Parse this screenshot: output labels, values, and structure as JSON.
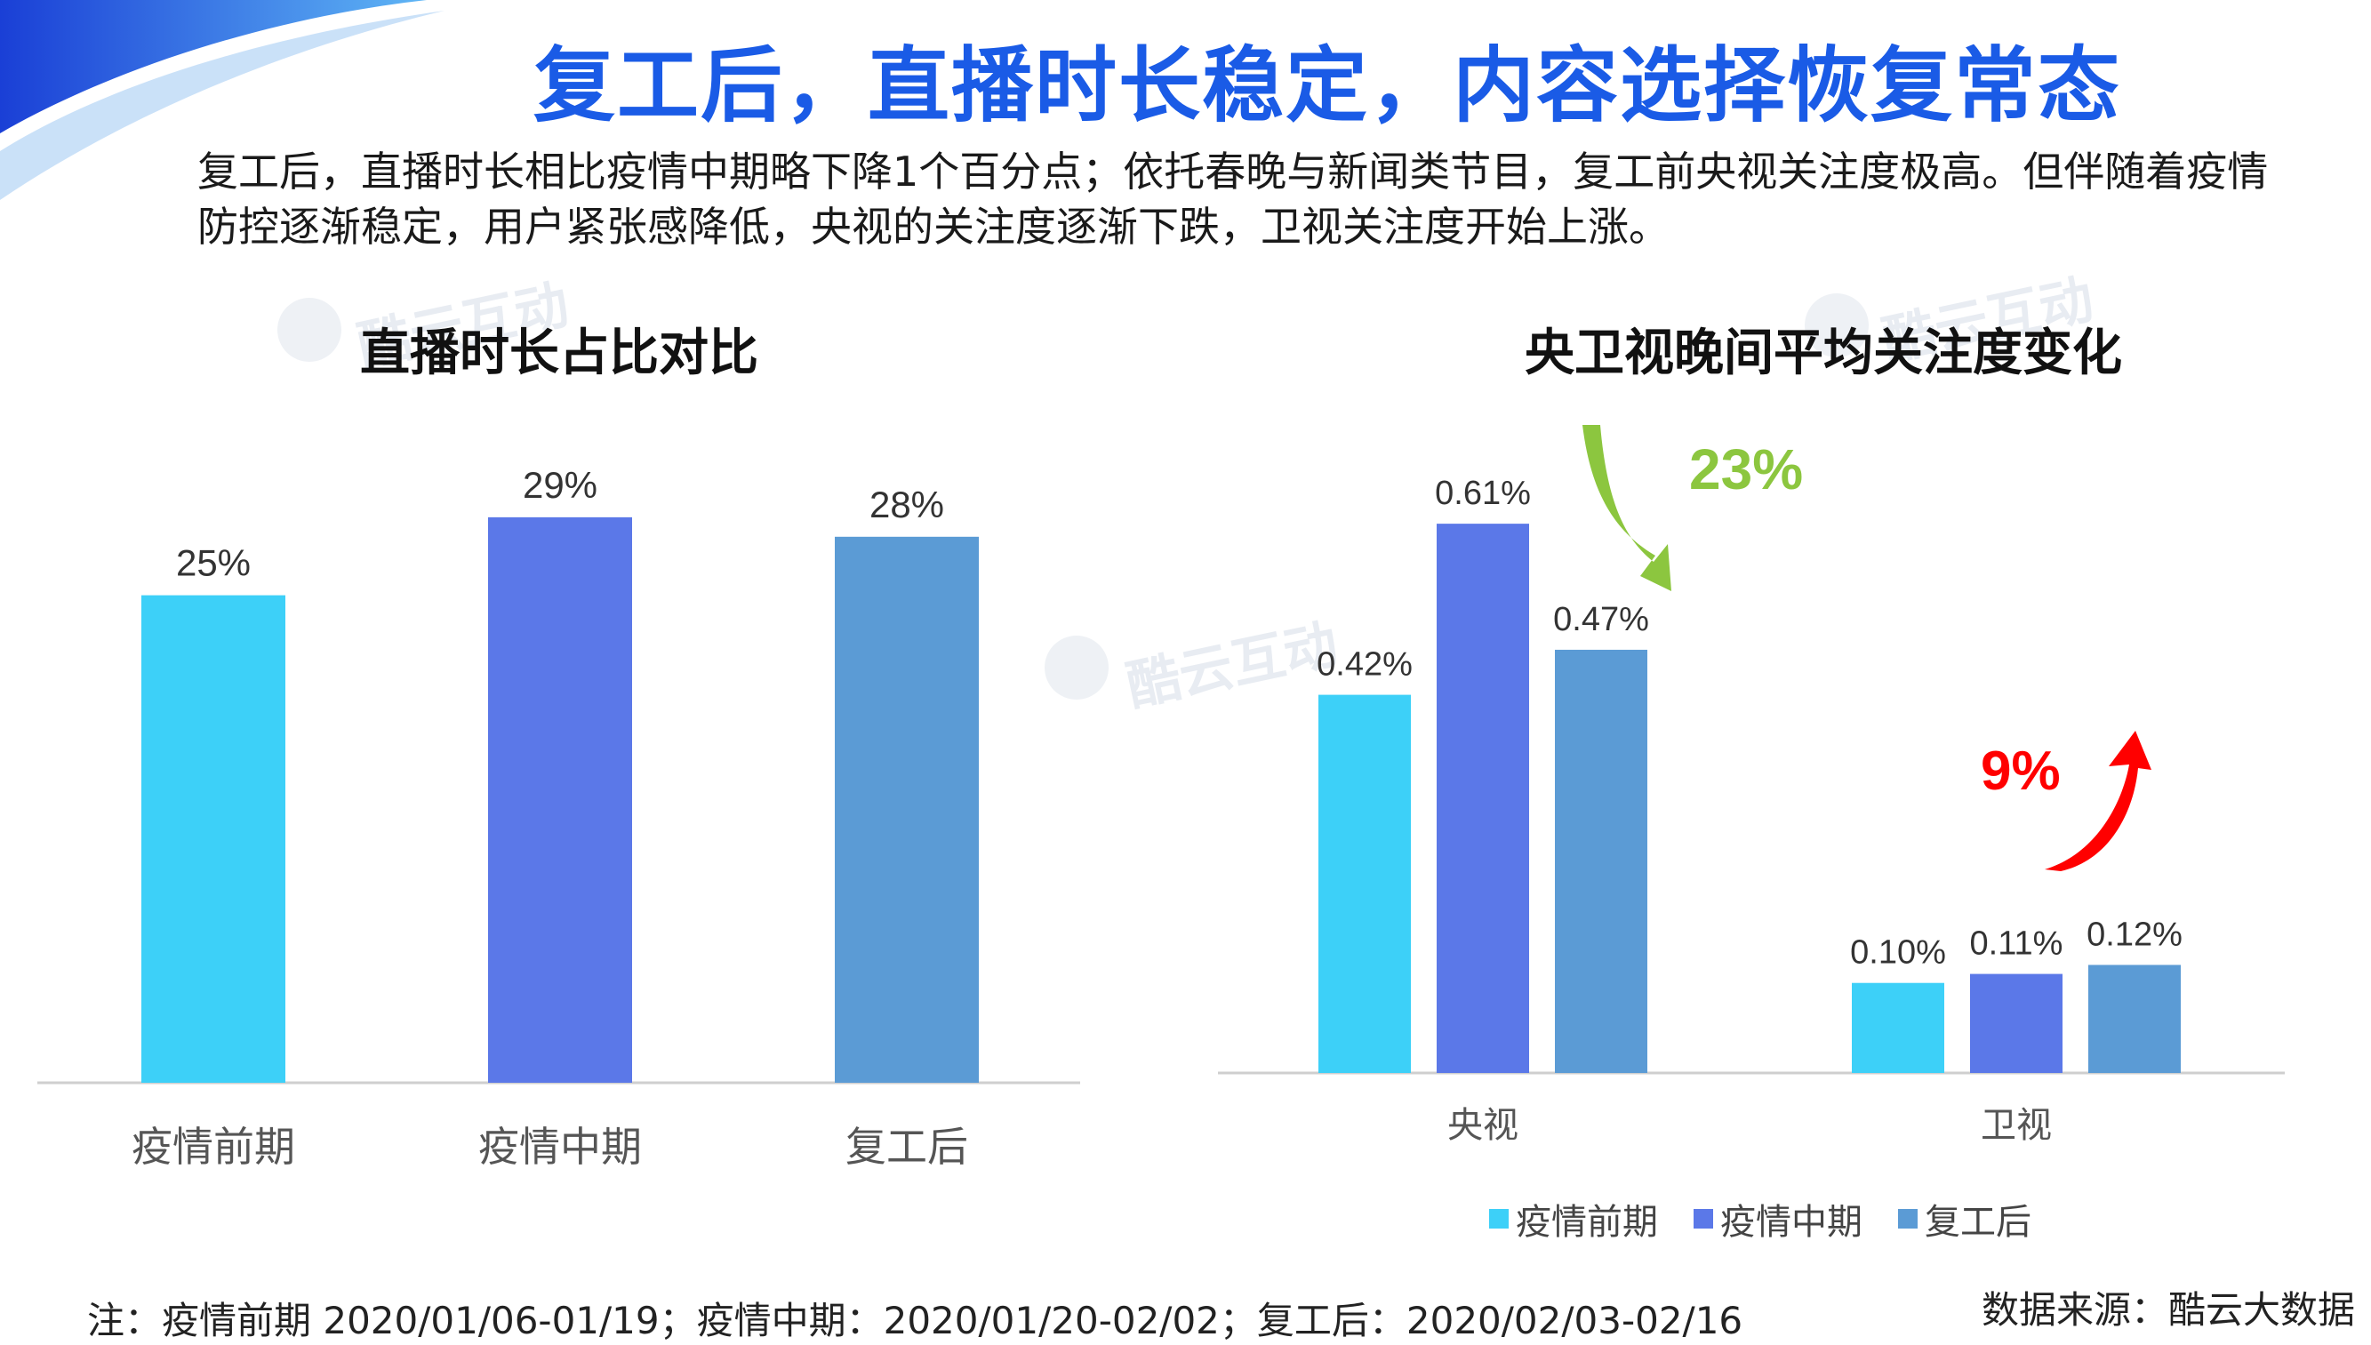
{
  "title": "复工后，直播时长稳定，内容选择恢复常态",
  "intro": "复工后，直播时长相比疫情中期略下降1个百分点；依托春晚与新闻类节目，复工前央视关注度极高。但伴随着疫情防控逐渐稳定，用户紧张感降低，央视的关注度逐渐下跌，卫视关注度开始上涨。",
  "watermark": "酷云互动",
  "colors": {
    "period1": "#3dd0f8",
    "period2": "#5b78e8",
    "period3": "#5b9bd5",
    "title": "#1a5be6",
    "down": "#8cc63f",
    "up": "#ff0000"
  },
  "chart_data": [
    {
      "type": "bar",
      "title": "直播时长占比对比",
      "categories": [
        "疫情前期",
        "疫情中期",
        "复工后"
      ],
      "values": [
        25,
        29,
        28
      ],
      "labels": [
        "25%",
        "29%",
        "28%"
      ],
      "ylim": [
        0,
        31
      ]
    },
    {
      "type": "bar",
      "title": "央卫视晚间平均关注度变化",
      "categories": [
        "央视",
        "卫视"
      ],
      "series": [
        {
          "name": "疫情前期",
          "values": [
            0.42,
            0.1
          ],
          "labels": [
            "0.42%",
            "0.10%"
          ]
        },
        {
          "name": "疫情中期",
          "values": [
            0.61,
            0.11
          ],
          "labels": [
            "0.61%",
            "0.11%"
          ]
        },
        {
          "name": "复工后",
          "values": [
            0.47,
            0.12
          ],
          "labels": [
            "0.47%",
            "0.12%"
          ]
        }
      ],
      "ylim": [
        0,
        0.62
      ],
      "annotations": [
        {
          "text": "23%",
          "direction": "down",
          "color": "#8cc63f"
        },
        {
          "text": "9%",
          "direction": "up",
          "color": "#ff0000"
        }
      ],
      "legend": "bottom"
    }
  ],
  "footnote": "注：疫情前期 2020/01/06-01/19；疫情中期：2020/01/20-02/02；复工后：2020/02/03-02/16",
  "source": "数据来源：酷云大数据"
}
